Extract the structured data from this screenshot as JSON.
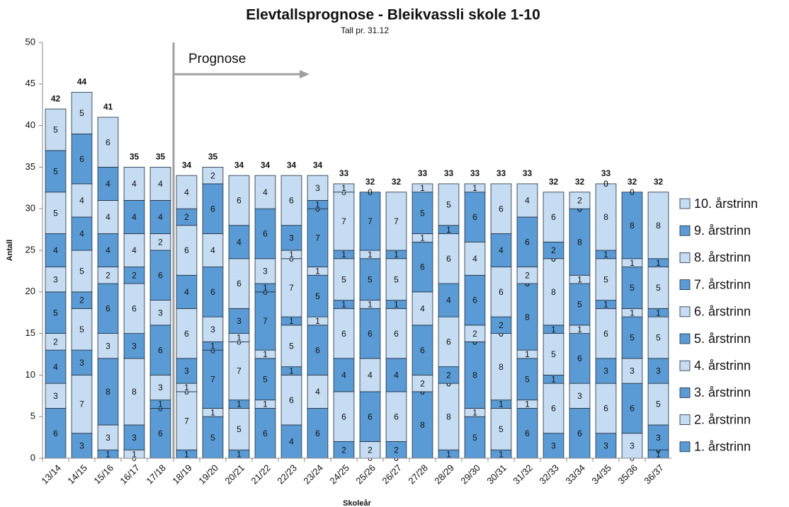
{
  "chart_data": {
    "type": "stacked_bar",
    "title": "Elevtallsprognose - Bleikvassli skole 1-10",
    "subtitle": "Tall pr. 31.12",
    "xlabel": "Skoleår",
    "ylabel": "Antall",
    "annotation": "Prognose",
    "categories": [
      "13/14",
      "14/15",
      "15/16",
      "16/17",
      "17/18",
      "18/19",
      "19/20",
      "20/21",
      "21/22",
      "22/23",
      "23/24",
      "24/25",
      "25/26",
      "26/27",
      "27/28",
      "28/29",
      "29/30",
      "30/31",
      "31/32",
      "32/33",
      "33/34",
      "34/35",
      "35/36",
      "36/37"
    ],
    "totals": [
      42,
      44,
      41,
      35,
      35,
      34,
      35,
      34,
      34,
      34,
      34,
      33,
      32,
      32,
      33,
      33,
      33,
      33,
      33,
      32,
      32,
      33,
      32,
      32
    ],
    "ylim": [
      0,
      50
    ],
    "yticks": [
      0,
      5,
      10,
      15,
      20,
      25,
      30,
      35,
      40,
      45,
      50
    ],
    "legend": "right",
    "series": [
      {
        "name": "1. årstrinn",
        "color": "#5b9bd5",
        "values": [
          6,
          3,
          1,
          0,
          6,
          1,
          5,
          1,
          6,
          4,
          6,
          2,
          0,
          0,
          8,
          1,
          5,
          1,
          6,
          3,
          6,
          3,
          0,
          1
        ]
      },
      {
        "name": "2. årstrinn",
        "color": "#c5dcf2",
        "values": [
          3,
          7,
          3,
          1,
          0,
          7,
          1,
          5,
          1,
          6,
          4,
          6,
          2,
          0,
          0,
          8,
          1,
          5,
          1,
          6,
          3,
          6,
          3,
          0
        ]
      },
      {
        "name": "3. årstrinn",
        "color": "#5b9bd5",
        "values": [
          4,
          3,
          8,
          3,
          1,
          0,
          7,
          1,
          5,
          1,
          6,
          4,
          6,
          2,
          0,
          0,
          8,
          1,
          5,
          1,
          6,
          3,
          6,
          3
        ]
      },
      {
        "name": "4. årstrinn",
        "color": "#c5dcf2",
        "values": [
          2,
          5,
          3,
          8,
          3,
          1,
          0,
          7,
          1,
          5,
          1,
          6,
          4,
          6,
          2,
          0,
          0,
          8,
          1,
          5,
          1,
          6,
          3,
          5
        ]
      },
      {
        "name": "5. årstrinn",
        "color": "#5b9bd5",
        "values": [
          5,
          2,
          6,
          3,
          6,
          3,
          1,
          0,
          7,
          1,
          5,
          1,
          6,
          4,
          6,
          2,
          0,
          0,
          8,
          1,
          5,
          1,
          5,
          3
        ]
      },
      {
        "name": "6. årstrinn",
        "color": "#c5dcf2",
        "values": [
          3,
          5,
          2,
          6,
          3,
          6,
          3,
          1,
          0,
          7,
          1,
          5,
          1,
          6,
          4,
          6,
          2,
          0,
          0,
          8,
          1,
          5,
          1,
          5
        ]
      },
      {
        "name": "7. årstrinn",
        "color": "#5b9bd5",
        "values": [
          4,
          4,
          4,
          2,
          6,
          4,
          6,
          3,
          1,
          0,
          7,
          1,
          5,
          1,
          6,
          4,
          6,
          2,
          0,
          0,
          8,
          1,
          5,
          1
        ]
      },
      {
        "name": "8. årstrinn",
        "color": "#c5dcf2",
        "values": [
          5,
          4,
          4,
          4,
          2,
          6,
          4,
          6,
          3,
          1,
          0,
          7,
          1,
          5,
          1,
          6,
          4,
          6,
          2,
          0,
          0,
          8,
          1,
          5
        ]
      },
      {
        "name": "9. årstrinn",
        "color": "#5b9bd5",
        "values": [
          5,
          6,
          4,
          4,
          4,
          2,
          6,
          4,
          6,
          3,
          1,
          0,
          7,
          1,
          5,
          1,
          6,
          4,
          6,
          2,
          0,
          0,
          8,
          1
        ]
      },
      {
        "name": "10. årstrinn",
        "color": "#c5dcf2",
        "values": [
          5,
          5,
          6,
          4,
          4,
          4,
          2,
          6,
          4,
          6,
          3,
          1,
          0,
          7,
          1,
          5,
          1,
          6,
          4,
          6,
          2,
          0,
          0,
          8
        ]
      }
    ]
  }
}
